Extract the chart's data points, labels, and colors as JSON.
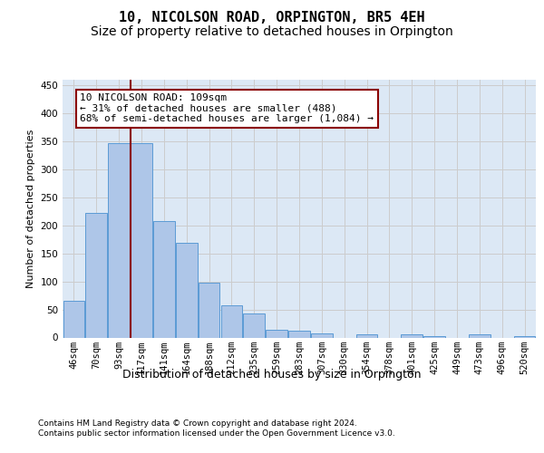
{
  "title1": "10, NICOLSON ROAD, ORPINGTON, BR5 4EH",
  "title2": "Size of property relative to detached houses in Orpington",
  "xlabel": "Distribution of detached houses by size in Orpington",
  "ylabel": "Number of detached properties",
  "categories": [
    "46sqm",
    "70sqm",
    "93sqm",
    "117sqm",
    "141sqm",
    "164sqm",
    "188sqm",
    "212sqm",
    "235sqm",
    "259sqm",
    "283sqm",
    "307sqm",
    "330sqm",
    "354sqm",
    "378sqm",
    "401sqm",
    "425sqm",
    "449sqm",
    "473sqm",
    "496sqm",
    "520sqm"
  ],
  "values": [
    65,
    222,
    347,
    347,
    208,
    168,
    97,
    57,
    43,
    13,
    12,
    7,
    0,
    6,
    0,
    5,
    3,
    0,
    5,
    0,
    3
  ],
  "bar_color": "#aec6e8",
  "bar_edge_color": "#5b9bd5",
  "annotation_box_text": "10 NICOLSON ROAD: 109sqm\n← 31% of detached houses are smaller (488)\n68% of semi-detached houses are larger (1,084) →",
  "vline_color": "#8b0000",
  "vline_x_index": 2.5,
  "grid_color": "#cccccc",
  "ylim": [
    0,
    460
  ],
  "yticks": [
    0,
    50,
    100,
    150,
    200,
    250,
    300,
    350,
    400,
    450
  ],
  "footer1": "Contains HM Land Registry data © Crown copyright and database right 2024.",
  "footer2": "Contains public sector information licensed under the Open Government Licence v3.0.",
  "bg_color": "#dce8f5",
  "fig_bg_color": "#ffffff",
  "title1_fontsize": 11,
  "title2_fontsize": 10,
  "xlabel_fontsize": 9,
  "ylabel_fontsize": 8,
  "tick_fontsize": 7.5,
  "annotation_fontsize": 8,
  "footer_fontsize": 6.5
}
